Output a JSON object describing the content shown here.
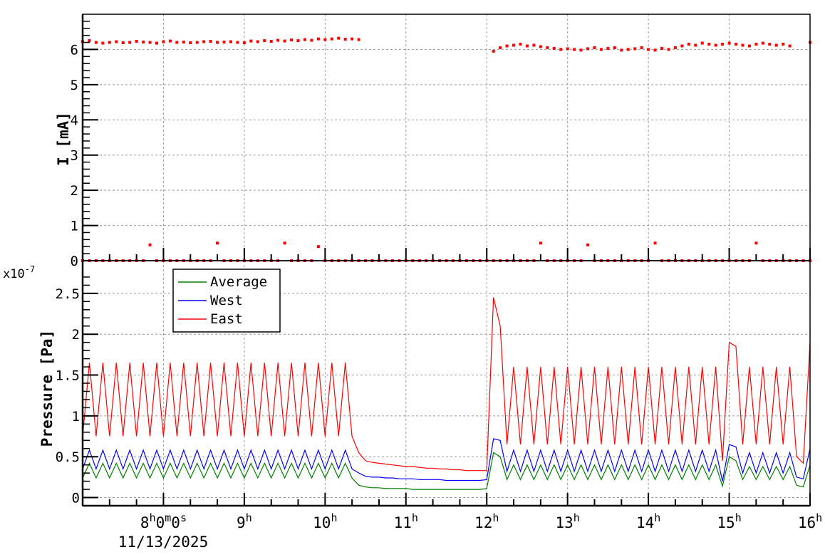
{
  "chart_data": [
    {
      "type": "scatter",
      "ylabel": "I [mA]",
      "ylim": [
        0,
        7
      ],
      "xlim": [
        "7:00",
        "16:00"
      ],
      "y_ticks": [
        "0",
        "1",
        "2",
        "3",
        "4",
        "5",
        "6"
      ],
      "grid": true,
      "color": "#ff0000",
      "x": [
        "7:00",
        "7:05",
        "7:10",
        "7:15",
        "7:20",
        "7:25",
        "7:30",
        "7:35",
        "7:40",
        "7:45",
        "7:50",
        "7:55",
        "8:00",
        "8:05",
        "8:10",
        "8:15",
        "8:20",
        "8:25",
        "8:30",
        "8:35",
        "8:40",
        "8:45",
        "8:50",
        "8:55",
        "9:00",
        "9:05",
        "9:10",
        "9:15",
        "9:20",
        "9:25",
        "9:30",
        "9:35",
        "9:40",
        "9:45",
        "9:50",
        "9:55",
        "10:00",
        "10:05",
        "10:10",
        "10:15",
        "10:20",
        "10:25",
        "10:30",
        "10:35",
        "10:40",
        "10:45",
        "10:50",
        "10:55",
        "11:00",
        "11:05",
        "11:10",
        "11:15",
        "11:20",
        "11:25",
        "11:30",
        "11:35",
        "11:40",
        "11:45",
        "11:50",
        "11:55",
        "12:00",
        "12:05",
        "12:10",
        "12:15",
        "12:20",
        "12:25",
        "12:30",
        "12:35",
        "12:40",
        "12:45",
        "12:50",
        "12:55",
        "13:00",
        "13:05",
        "13:10",
        "13:15",
        "13:20",
        "13:25",
        "13:30",
        "13:35",
        "13:40",
        "13:45",
        "13:50",
        "13:55",
        "14:00",
        "14:05",
        "14:10",
        "14:15",
        "14:20",
        "14:25",
        "14:30",
        "14:35",
        "14:40",
        "14:45",
        "14:50",
        "14:55",
        "15:00",
        "15:05",
        "15:10",
        "15:15",
        "15:20",
        "15:25",
        "15:30",
        "15:35",
        "15:40",
        "15:45",
        "15:50",
        "15:55",
        "16:00"
      ],
      "series": [
        {
          "values": [
            6.22,
            6.25,
            6.2,
            6.18,
            6.2,
            6.22,
            6.19,
            6.2,
            6.23,
            6.21,
            6.2,
            6.18,
            6.22,
            6.24,
            6.2,
            6.21,
            6.19,
            6.2,
            6.22,
            6.23,
            6.2,
            6.21,
            6.22,
            6.2,
            6.19,
            6.24,
            6.22,
            6.25,
            6.23,
            6.26,
            6.24,
            6.27,
            6.25,
            6.28,
            6.26,
            6.3,
            6.28,
            6.3,
            6.32,
            6.29,
            6.3,
            6.28,
            null,
            null,
            null,
            null,
            null,
            null,
            null,
            null,
            null,
            null,
            null,
            null,
            null,
            null,
            null,
            null,
            null,
            null,
            null,
            5.95,
            6.05,
            6.1,
            6.12,
            6.15,
            6.1,
            6.12,
            6.08,
            6.05,
            6.03,
            6.0,
            6.02,
            6.0,
            5.98,
            6.02,
            6.05,
            6.0,
            6.03,
            6.05,
            5.98,
            6.0,
            6.02,
            6.05,
            6.0,
            5.98,
            6.03,
            6.0,
            6.05,
            6.1,
            6.15,
            6.12,
            6.18,
            6.15,
            6.12,
            6.15,
            6.18,
            6.15,
            6.12,
            6.1,
            6.15,
            6.18,
            6.15,
            6.12,
            6.15,
            6.1,
            null,
            null,
            6.2
          ]
        },
        {
          "values": [
            0,
            0,
            0,
            0,
            0,
            0,
            0,
            0,
            0,
            0,
            0.45,
            0,
            0,
            0,
            0,
            0,
            0,
            0,
            0,
            0,
            0.5,
            0,
            0,
            0,
            0,
            0,
            0,
            0,
            0,
            0,
            0.5,
            0,
            0,
            0,
            0,
            0.4,
            0,
            0,
            0,
            0,
            0,
            0,
            0,
            0,
            0,
            0,
            0,
            0,
            0,
            0,
            0,
            0,
            0,
            0,
            0,
            0,
            0,
            0,
            0,
            0,
            0,
            0,
            0,
            0,
            0,
            0,
            0,
            0,
            0.5,
            0,
            0,
            0,
            0,
            0,
            0,
            0.45,
            0,
            0,
            0,
            0,
            0,
            0,
            0,
            0,
            0,
            0.5,
            0,
            0,
            0,
            0,
            0,
            0,
            0,
            0,
            0,
            0,
            0,
            0,
            0,
            0,
            0.5,
            0,
            0,
            0,
            0,
            0,
            0,
            0,
            0
          ]
        }
      ]
    },
    {
      "type": "line",
      "ylabel": "Pressure [Pa]",
      "y_multiplier": "x10",
      "y_exponent": "-7",
      "ylim": [
        -0.1,
        2.9
      ],
      "xlim": [
        "7:00",
        "16:00"
      ],
      "y_ticks": [
        "0",
        "0.5",
        "1",
        "1.5",
        "2",
        "2.5"
      ],
      "x_ticks": [
        "8h0m0s",
        "9h",
        "10h",
        "11h",
        "12h",
        "13h",
        "14h",
        "15h",
        "16h"
      ],
      "x_date": "11/13/2025",
      "grid": true,
      "legend_placement": "top-left",
      "series": [
        {
          "name": "Average",
          "color": "#008000",
          "values": [
            0.24,
            0.42,
            0.24,
            0.42,
            0.24,
            0.42,
            0.24,
            0.42,
            0.24,
            0.42,
            0.24,
            0.42,
            0.24,
            0.42,
            0.24,
            0.42,
            0.24,
            0.42,
            0.24,
            0.42,
            0.24,
            0.42,
            0.24,
            0.42,
            0.24,
            0.42,
            0.24,
            0.42,
            0.24,
            0.42,
            0.24,
            0.42,
            0.24,
            0.42,
            0.24,
            0.42,
            0.24,
            0.42,
            0.24,
            0.42,
            0.24,
            0.15,
            0.13,
            0.12,
            0.12,
            0.11,
            0.11,
            0.11,
            0.11,
            0.1,
            0.1,
            0.1,
            0.1,
            0.1,
            0.1,
            0.1,
            0.1,
            0.1,
            0.1,
            0.1,
            0.11,
            0.55,
            0.5,
            0.22,
            0.4,
            0.22,
            0.4,
            0.22,
            0.4,
            0.22,
            0.4,
            0.22,
            0.4,
            0.22,
            0.4,
            0.22,
            0.4,
            0.22,
            0.4,
            0.22,
            0.4,
            0.22,
            0.4,
            0.22,
            0.4,
            0.22,
            0.4,
            0.22,
            0.4,
            0.22,
            0.4,
            0.22,
            0.4,
            0.22,
            0.4,
            0.14,
            0.5,
            0.45,
            0.22,
            0.38,
            0.22,
            0.38,
            0.22,
            0.38,
            0.22,
            0.38,
            0.15,
            0.13,
            0.4
          ]
        },
        {
          "name": "West",
          "color": "#0000ff",
          "values": [
            0.35,
            0.58,
            0.35,
            0.58,
            0.35,
            0.58,
            0.35,
            0.58,
            0.35,
            0.58,
            0.35,
            0.58,
            0.35,
            0.58,
            0.35,
            0.58,
            0.35,
            0.58,
            0.35,
            0.58,
            0.35,
            0.58,
            0.35,
            0.58,
            0.35,
            0.58,
            0.35,
            0.58,
            0.35,
            0.58,
            0.35,
            0.58,
            0.35,
            0.58,
            0.35,
            0.58,
            0.35,
            0.58,
            0.35,
            0.58,
            0.35,
            0.3,
            0.26,
            0.25,
            0.25,
            0.24,
            0.24,
            0.23,
            0.23,
            0.23,
            0.22,
            0.22,
            0.22,
            0.22,
            0.21,
            0.21,
            0.21,
            0.21,
            0.21,
            0.21,
            0.22,
            0.72,
            0.7,
            0.32,
            0.58,
            0.32,
            0.58,
            0.32,
            0.58,
            0.32,
            0.58,
            0.32,
            0.58,
            0.32,
            0.58,
            0.32,
            0.58,
            0.32,
            0.58,
            0.32,
            0.58,
            0.32,
            0.58,
            0.32,
            0.58,
            0.32,
            0.58,
            0.32,
            0.58,
            0.32,
            0.58,
            0.32,
            0.58,
            0.32,
            0.58,
            0.2,
            0.65,
            0.62,
            0.3,
            0.55,
            0.3,
            0.55,
            0.3,
            0.55,
            0.3,
            0.55,
            0.25,
            0.23,
            0.6
          ]
        },
        {
          "name": "East",
          "color": "#ff0000",
          "values": [
            0.75,
            1.65,
            0.75,
            1.65,
            0.75,
            1.65,
            0.75,
            1.65,
            0.75,
            1.65,
            0.75,
            1.65,
            0.75,
            1.65,
            0.75,
            1.65,
            0.75,
            1.65,
            0.75,
            1.65,
            0.75,
            1.65,
            0.75,
            1.65,
            0.75,
            1.65,
            0.75,
            1.65,
            0.75,
            1.65,
            0.75,
            1.65,
            0.75,
            1.65,
            0.75,
            1.65,
            0.75,
            1.65,
            0.75,
            1.65,
            0.75,
            0.55,
            0.45,
            0.43,
            0.42,
            0.41,
            0.4,
            0.39,
            0.38,
            0.38,
            0.37,
            0.36,
            0.36,
            0.35,
            0.35,
            0.34,
            0.34,
            0.33,
            0.33,
            0.33,
            0.33,
            2.45,
            2.1,
            0.65,
            1.6,
            0.65,
            1.6,
            0.65,
            1.6,
            0.65,
            1.6,
            0.65,
            1.6,
            0.65,
            1.6,
            0.65,
            1.6,
            0.65,
            1.6,
            0.65,
            1.6,
            0.65,
            1.6,
            0.65,
            1.6,
            0.65,
            1.6,
            0.65,
            1.6,
            0.65,
            1.6,
            0.65,
            1.6,
            0.65,
            1.6,
            0.45,
            1.9,
            1.85,
            0.65,
            1.6,
            0.65,
            1.6,
            0.65,
            1.6,
            0.65,
            1.6,
            0.5,
            0.42,
            1.9
          ]
        }
      ]
    }
  ]
}
